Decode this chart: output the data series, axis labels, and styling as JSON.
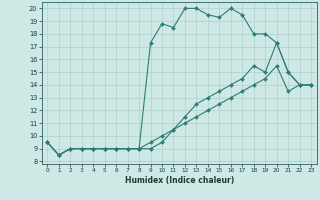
{
  "xlabel": "Humidex (Indice chaleur)",
  "bg_color": "#cde8e5",
  "grid_color": "#aed0cc",
  "line_color": "#2e7d70",
  "xlim": [
    -0.5,
    23.5
  ],
  "ylim": [
    7.8,
    20.5
  ],
  "xticks": [
    0,
    1,
    2,
    3,
    4,
    5,
    6,
    7,
    8,
    9,
    10,
    11,
    12,
    13,
    14,
    15,
    16,
    17,
    18,
    19,
    20,
    21,
    22,
    23
  ],
  "yticks": [
    8,
    9,
    10,
    11,
    12,
    13,
    14,
    15,
    16,
    17,
    18,
    19,
    20
  ],
  "line1_x": [
    0,
    1,
    2,
    3,
    4,
    5,
    6,
    7,
    8,
    9,
    10,
    11,
    12,
    13,
    14,
    15,
    16,
    17,
    18,
    19,
    20,
    21,
    22,
    23
  ],
  "line1_y": [
    9.5,
    8.5,
    9.0,
    9.0,
    9.0,
    9.0,
    9.0,
    9.0,
    9.0,
    17.3,
    18.8,
    18.5,
    20.0,
    20.0,
    19.5,
    19.3,
    20.0,
    19.5,
    18.0,
    18.0,
    17.3,
    15.0,
    14.0,
    14.0
  ],
  "line2_x": [
    0,
    1,
    2,
    3,
    4,
    5,
    6,
    7,
    8,
    9,
    10,
    11,
    12,
    13,
    14,
    15,
    16,
    17,
    18,
    19,
    20,
    21,
    22,
    23
  ],
  "line2_y": [
    9.5,
    8.5,
    9.0,
    9.0,
    9.0,
    9.0,
    9.0,
    9.0,
    9.0,
    9.0,
    9.5,
    10.5,
    11.5,
    12.5,
    13.0,
    13.5,
    14.0,
    14.5,
    15.5,
    15.0,
    17.3,
    15.0,
    14.0,
    14.0
  ],
  "line3_x": [
    0,
    1,
    2,
    3,
    4,
    5,
    6,
    7,
    8,
    9,
    10,
    11,
    12,
    13,
    14,
    15,
    16,
    17,
    18,
    19,
    20,
    21,
    22,
    23
  ],
  "line3_y": [
    9.5,
    8.5,
    9.0,
    9.0,
    9.0,
    9.0,
    9.0,
    9.0,
    9.0,
    9.5,
    10.0,
    10.5,
    11.0,
    11.5,
    12.0,
    12.5,
    13.0,
    13.5,
    14.0,
    14.5,
    15.5,
    13.5,
    14.0,
    14.0
  ]
}
